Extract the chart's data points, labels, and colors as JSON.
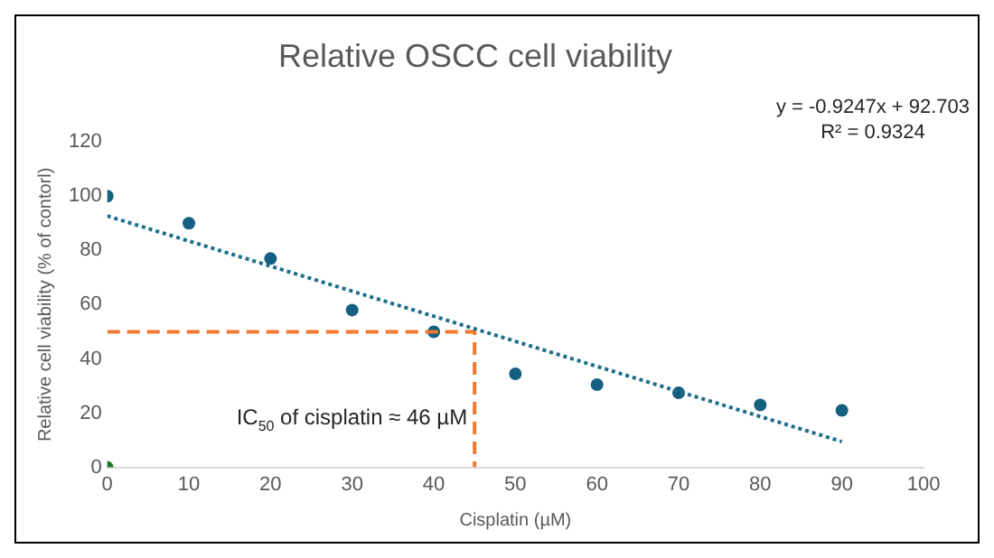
{
  "chart_data": {
    "type": "scatter",
    "title": "Relative OSCC cell viability",
    "xlabel": "Cisplatin (µM)",
    "ylabel": "Relative cell viability (% of contorl)",
    "xlim": [
      0,
      100
    ],
    "xticks": [
      0,
      10,
      20,
      30,
      40,
      50,
      60,
      70,
      80,
      90,
      100
    ],
    "ylim": [
      0,
      120
    ],
    "yticks": [
      0,
      20,
      40,
      60,
      80,
      100,
      120
    ],
    "grid": false,
    "legend": false,
    "series": [
      {
        "type": "line",
        "color": "#1a6e8c",
        "x": [
          0,
          90
        ],
        "values": [
          92.7,
          9.5
        ],
        "marker": "none",
        "line_style": "dotted"
      },
      {
        "type": "line",
        "color": "#f07830",
        "x": [
          0,
          45,
          45
        ],
        "values": [
          50,
          50,
          0
        ],
        "marker": "none",
        "line_style": "dashed"
      },
      {
        "type": "scatter",
        "color": "#155f80",
        "x": [
          0,
          10,
          20,
          30,
          40,
          50,
          60,
          70,
          80,
          90
        ],
        "values": [
          100,
          90,
          77,
          58,
          50,
          34.5,
          30.5,
          27.5,
          23,
          21
        ],
        "marker": "circle"
      },
      {
        "type": "scatter",
        "color": "#1e7a2a",
        "x": [
          0
        ],
        "values": [
          0
        ],
        "marker": "circle"
      }
    ],
    "annotations": [
      "y = -0.9247x + 92.703",
      "R² = 0.9324",
      {
        "text": "IC$_{50}$ of cisplatin ≈ 46 µM",
        "x": 45,
        "y": 16
      }
    ]
  }
}
